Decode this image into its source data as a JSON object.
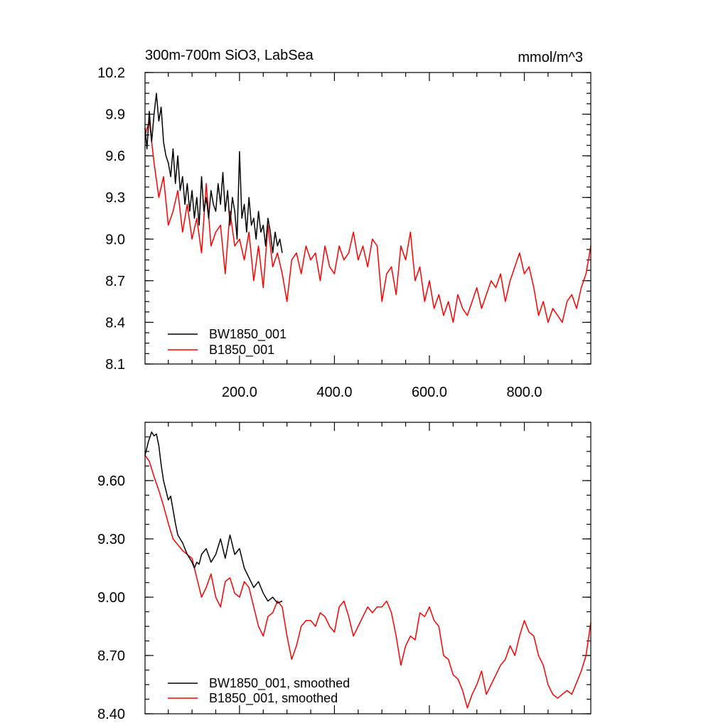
{
  "colors": {
    "bw": "#000000",
    "b": "#ff0000"
  },
  "chart_data": [
    {
      "type": "line",
      "title": "300m-700m SiO3, LabSea",
      "units": "mmol/m^3",
      "xlim": [
        1,
        940
      ],
      "ylim": [
        8.1,
        10.2
      ],
      "xticks": [
        200,
        400,
        600,
        800
      ],
      "xtick_labels": [
        "200.0",
        "400.0",
        "600.0",
        "800.0"
      ],
      "yticks": [
        8.1,
        8.4,
        8.7,
        9.0,
        9.3,
        9.6,
        9.9,
        10.2
      ],
      "ytick_labels": [
        "8.1",
        "8.4",
        "8.7",
        "9.0",
        "9.3",
        "9.6",
        "9.9",
        "10.2"
      ],
      "legend_position": "bottom-left",
      "series": [
        {
          "name": "BW1850_001",
          "color": "#000000",
          "x": [
            1,
            5,
            10,
            15,
            20,
            25,
            30,
            35,
            40,
            45,
            50,
            55,
            60,
            65,
            70,
            75,
            80,
            85,
            90,
            95,
            100,
            105,
            110,
            115,
            120,
            125,
            130,
            135,
            140,
            145,
            150,
            155,
            160,
            165,
            170,
            175,
            180,
            185,
            190,
            195,
            200,
            205,
            210,
            215,
            220,
            225,
            230,
            235,
            240,
            245,
            250,
            255,
            260,
            265,
            270,
            275,
            280,
            285,
            290
          ],
          "values": [
            9.8,
            9.65,
            9.92,
            9.7,
            9.9,
            10.05,
            9.85,
            9.95,
            9.7,
            9.6,
            9.55,
            9.45,
            9.65,
            9.4,
            9.6,
            9.35,
            9.45,
            9.25,
            9.4,
            9.2,
            9.35,
            9.15,
            9.3,
            9.1,
            9.45,
            9.2,
            9.3,
            9.15,
            9.35,
            9.25,
            9.2,
            9.4,
            9.25,
            9.48,
            9.2,
            9.35,
            9.1,
            9.3,
            9.2,
            9.0,
            9.63,
            9.15,
            9.25,
            9.05,
            9.3,
            9.1,
            9.15,
            9.0,
            9.2,
            9.05,
            9.1,
            8.95,
            9.15,
            9.05,
            8.9,
            9.05,
            8.95,
            9.0,
            8.9
          ]
        },
        {
          "name": "B1850_001",
          "color": "#ff0000",
          "x": [
            1,
            10,
            20,
            30,
            40,
            50,
            60,
            70,
            80,
            90,
            100,
            110,
            120,
            130,
            140,
            150,
            160,
            170,
            180,
            190,
            200,
            210,
            220,
            230,
            240,
            250,
            260,
            270,
            280,
            290,
            300,
            310,
            320,
            330,
            340,
            350,
            360,
            370,
            380,
            390,
            400,
            410,
            420,
            430,
            440,
            450,
            460,
            470,
            480,
            490,
            500,
            510,
            520,
            530,
            540,
            550,
            560,
            570,
            580,
            590,
            600,
            610,
            620,
            630,
            640,
            650,
            660,
            670,
            680,
            690,
            700,
            710,
            720,
            730,
            740,
            750,
            760,
            770,
            780,
            790,
            800,
            810,
            820,
            830,
            840,
            850,
            860,
            870,
            880,
            890,
            900,
            910,
            920,
            930,
            940
          ],
          "values": [
            9.75,
            9.85,
            9.55,
            9.3,
            9.45,
            9.1,
            9.2,
            9.35,
            9.05,
            9.25,
            9.0,
            9.15,
            8.9,
            9.4,
            8.95,
            9.05,
            9.1,
            8.75,
            9.2,
            8.95,
            9.0,
            8.85,
            9.05,
            8.7,
            8.95,
            8.65,
            9.1,
            8.8,
            8.9,
            8.75,
            8.55,
            8.85,
            8.9,
            8.75,
            8.95,
            8.85,
            8.9,
            8.7,
            8.95,
            8.8,
            8.75,
            8.95,
            8.85,
            8.9,
            9.05,
            8.85,
            8.95,
            8.8,
            9.0,
            8.95,
            8.55,
            8.75,
            8.8,
            8.6,
            8.95,
            8.85,
            9.05,
            8.7,
            8.8,
            8.55,
            8.7,
            8.5,
            8.6,
            8.45,
            8.55,
            8.4,
            8.6,
            8.5,
            8.45,
            8.55,
            8.65,
            8.5,
            8.6,
            8.7,
            8.65,
            8.75,
            8.55,
            8.7,
            8.8,
            8.9,
            8.75,
            8.8,
            8.65,
            8.45,
            8.55,
            8.4,
            8.5,
            8.45,
            8.4,
            8.55,
            8.6,
            8.5,
            8.65,
            8.75,
            8.95
          ]
        }
      ]
    },
    {
      "type": "line",
      "xlim": [
        1,
        940
      ],
      "ylim": [
        8.4,
        9.9
      ],
      "xticks": [
        200,
        400,
        600,
        800
      ],
      "xtick_labels": [],
      "yticks": [
        8.4,
        8.7,
        9.0,
        9.3,
        9.6
      ],
      "ytick_labels": [
        "8.40",
        "8.70",
        "9.00",
        "9.30",
        "9.60"
      ],
      "legend_position": "bottom-left",
      "series": [
        {
          "name": "BW1850_001, smoothed",
          "color": "#000000",
          "x": [
            1,
            8,
            15,
            20,
            25,
            30,
            35,
            40,
            45,
            50,
            55,
            60,
            65,
            70,
            75,
            80,
            85,
            90,
            95,
            100,
            105,
            110,
            115,
            120,
            130,
            140,
            150,
            160,
            170,
            180,
            190,
            200,
            210,
            220,
            230,
            240,
            250,
            260,
            270,
            280,
            290
          ],
          "values": [
            9.73,
            9.8,
            9.85,
            9.83,
            9.84,
            9.78,
            9.68,
            9.6,
            9.55,
            9.5,
            9.52,
            9.45,
            9.38,
            9.32,
            9.3,
            9.28,
            9.25,
            9.22,
            9.2,
            9.18,
            9.15,
            9.18,
            9.17,
            9.22,
            9.25,
            9.18,
            9.22,
            9.3,
            9.2,
            9.32,
            9.22,
            9.25,
            9.15,
            9.1,
            9.05,
            9.08,
            9.02,
            8.98,
            9.0,
            8.97,
            8.98
          ]
        },
        {
          "name": "B1850_001, smoothed",
          "color": "#ff0000",
          "x": [
            1,
            10,
            20,
            30,
            40,
            50,
            60,
            70,
            80,
            90,
            100,
            110,
            120,
            130,
            140,
            150,
            160,
            170,
            180,
            190,
            200,
            210,
            220,
            230,
            240,
            250,
            260,
            270,
            280,
            290,
            300,
            310,
            320,
            330,
            340,
            350,
            360,
            370,
            380,
            390,
            400,
            410,
            420,
            430,
            440,
            450,
            460,
            470,
            480,
            490,
            500,
            510,
            520,
            530,
            540,
            550,
            560,
            570,
            580,
            590,
            600,
            610,
            620,
            630,
            640,
            650,
            660,
            670,
            680,
            690,
            700,
            710,
            720,
            730,
            740,
            750,
            760,
            770,
            780,
            790,
            800,
            810,
            820,
            830,
            840,
            850,
            860,
            870,
            880,
            890,
            900,
            910,
            920,
            930,
            940
          ],
          "values": [
            9.73,
            9.7,
            9.62,
            9.55,
            9.47,
            9.38,
            9.3,
            9.27,
            9.24,
            9.22,
            9.2,
            9.1,
            9.0,
            9.05,
            9.12,
            9.0,
            8.95,
            9.08,
            9.1,
            9.02,
            9.0,
            9.08,
            9.05,
            8.95,
            8.85,
            8.8,
            8.9,
            8.92,
            8.98,
            8.95,
            8.8,
            8.68,
            8.75,
            8.85,
            8.88,
            8.88,
            8.85,
            8.92,
            8.9,
            8.85,
            8.82,
            8.95,
            8.98,
            8.9,
            8.8,
            8.85,
            8.9,
            8.95,
            8.92,
            8.95,
            8.95,
            8.98,
            8.92,
            8.8,
            8.65,
            8.75,
            8.8,
            8.78,
            8.92,
            8.9,
            8.95,
            8.88,
            8.85,
            8.7,
            8.68,
            8.6,
            8.58,
            8.52,
            8.43,
            8.5,
            8.55,
            8.62,
            8.5,
            8.55,
            8.6,
            8.65,
            8.68,
            8.75,
            8.7,
            8.8,
            8.88,
            8.82,
            8.8,
            8.7,
            8.65,
            8.55,
            8.5,
            8.48,
            8.5,
            8.52,
            8.5,
            8.56,
            8.62,
            8.7,
            8.87
          ]
        }
      ]
    }
  ]
}
